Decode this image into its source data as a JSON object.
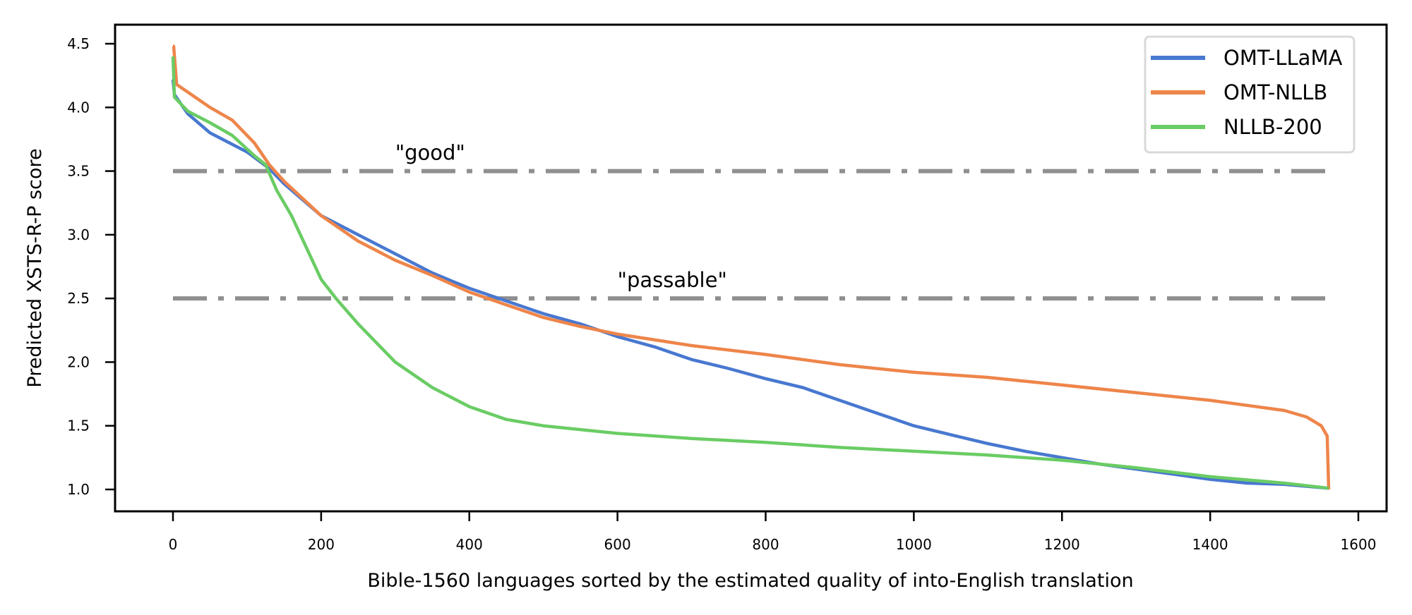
{
  "chart_data": {
    "type": "line",
    "title": "",
    "xlabel": "Bible-1560 languages sorted by the estimated quality of into-English translation",
    "ylabel": "Predicted XSTS-R-P score",
    "xlim": [
      -100,
      1645
    ],
    "ylim": [
      0.84,
      4.65
    ],
    "xticks": [
      0,
      200,
      400,
      600,
      800,
      1000,
      1200,
      1400,
      1600
    ],
    "xtick_labels": [
      "0",
      "200",
      "400",
      "600",
      "800",
      "1000",
      "1200",
      "1400",
      "1600"
    ],
    "yticks": [
      1.0,
      1.5,
      2.0,
      2.5,
      3.0,
      3.5,
      4.0,
      4.5
    ],
    "ytick_labels": [
      "1.0",
      "1.5",
      "2.0",
      "2.5",
      "3.0",
      "3.5",
      "4.0",
      "4.5"
    ],
    "grid": false,
    "legend_position": "upper right",
    "series": [
      {
        "name": "OMT-LLaMA",
        "color": "#4878d0",
        "x": [
          0,
          2,
          20,
          50,
          100,
          130,
          150,
          200,
          250,
          300,
          350,
          400,
          450,
          500,
          550,
          600,
          650,
          700,
          750,
          800,
          850,
          900,
          950,
          1000,
          1050,
          1100,
          1150,
          1200,
          1250,
          1300,
          1350,
          1400,
          1450,
          1500,
          1560
        ],
        "y": [
          4.22,
          4.1,
          3.95,
          3.8,
          3.65,
          3.52,
          3.4,
          3.15,
          3.0,
          2.85,
          2.7,
          2.58,
          2.48,
          2.38,
          2.3,
          2.2,
          2.12,
          2.02,
          1.95,
          1.87,
          1.8,
          1.7,
          1.6,
          1.5,
          1.43,
          1.36,
          1.3,
          1.25,
          1.2,
          1.16,
          1.12,
          1.08,
          1.05,
          1.04,
          1.01
        ]
      },
      {
        "name": "OMT-NLLB",
        "color": "#ee854a",
        "x": [
          0,
          1,
          5,
          20,
          50,
          80,
          110,
          130,
          150,
          200,
          250,
          300,
          350,
          400,
          450,
          500,
          550,
          600,
          700,
          800,
          900,
          1000,
          1100,
          1200,
          1300,
          1400,
          1450,
          1500,
          1530,
          1550,
          1558,
          1560
        ],
        "y": [
          4.48,
          4.48,
          4.18,
          4.12,
          4.0,
          3.9,
          3.72,
          3.55,
          3.42,
          3.15,
          2.95,
          2.8,
          2.68,
          2.55,
          2.45,
          2.35,
          2.28,
          2.22,
          2.13,
          2.06,
          1.98,
          1.92,
          1.88,
          1.82,
          1.76,
          1.7,
          1.66,
          1.62,
          1.57,
          1.5,
          1.42,
          1.0
        ]
      },
      {
        "name": "NLLB-200",
        "color": "#6acc64",
        "x": [
          0,
          2,
          20,
          50,
          80,
          110,
          125,
          140,
          160,
          180,
          200,
          220,
          250,
          300,
          350,
          400,
          450,
          500,
          600,
          700,
          800,
          900,
          1000,
          1100,
          1200,
          1300,
          1400,
          1500,
          1560
        ],
        "y": [
          4.4,
          4.08,
          3.97,
          3.88,
          3.78,
          3.62,
          3.55,
          3.35,
          3.15,
          2.9,
          2.65,
          2.5,
          2.3,
          2.0,
          1.8,
          1.65,
          1.55,
          1.5,
          1.44,
          1.4,
          1.37,
          1.33,
          1.3,
          1.27,
          1.23,
          1.17,
          1.1,
          1.05,
          1.01
        ]
      }
    ],
    "reference_lines": [
      {
        "y": 3.5,
        "label": "\"good\"",
        "label_x": 300,
        "style": "dash-dot",
        "color": "#8f8f8f",
        "x_range": [
          0,
          1560
        ]
      },
      {
        "y": 2.5,
        "label": "\"passable\"",
        "label_x": 600,
        "style": "dash-dot",
        "color": "#8f8f8f",
        "x_range": [
          0,
          1560
        ]
      }
    ]
  }
}
